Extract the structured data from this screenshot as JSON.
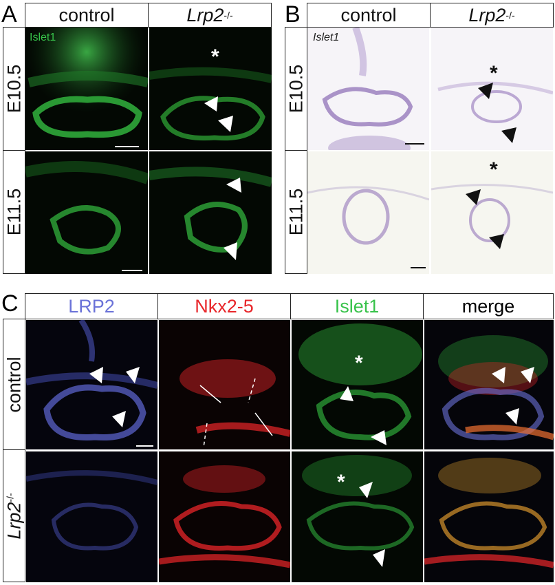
{
  "panel_letters": {
    "a": "A",
    "b": "B",
    "c": "C"
  },
  "panel_a": {
    "columns": [
      "control",
      "Lrp2"
    ],
    "rows": [
      "E10.5",
      "E11.5"
    ],
    "stain_label": "Islet1"
  },
  "panel_b": {
    "columns": [
      "control",
      "Lrp2"
    ],
    "rows": [
      "E10.5",
      "E11.5"
    ],
    "stain_label": "Islet1"
  },
  "panel_c": {
    "columns": [
      "LRP2",
      "Nkx2-5",
      "Islet1",
      "merge"
    ],
    "rows": [
      "control",
      "Lrp2"
    ]
  },
  "genotype_superscript": "-/-",
  "asterisk": "*",
  "colors": {
    "green": "#37c24a",
    "blue": "#6a72d8",
    "red": "#e8262a",
    "purple": "#8a6ab4"
  }
}
